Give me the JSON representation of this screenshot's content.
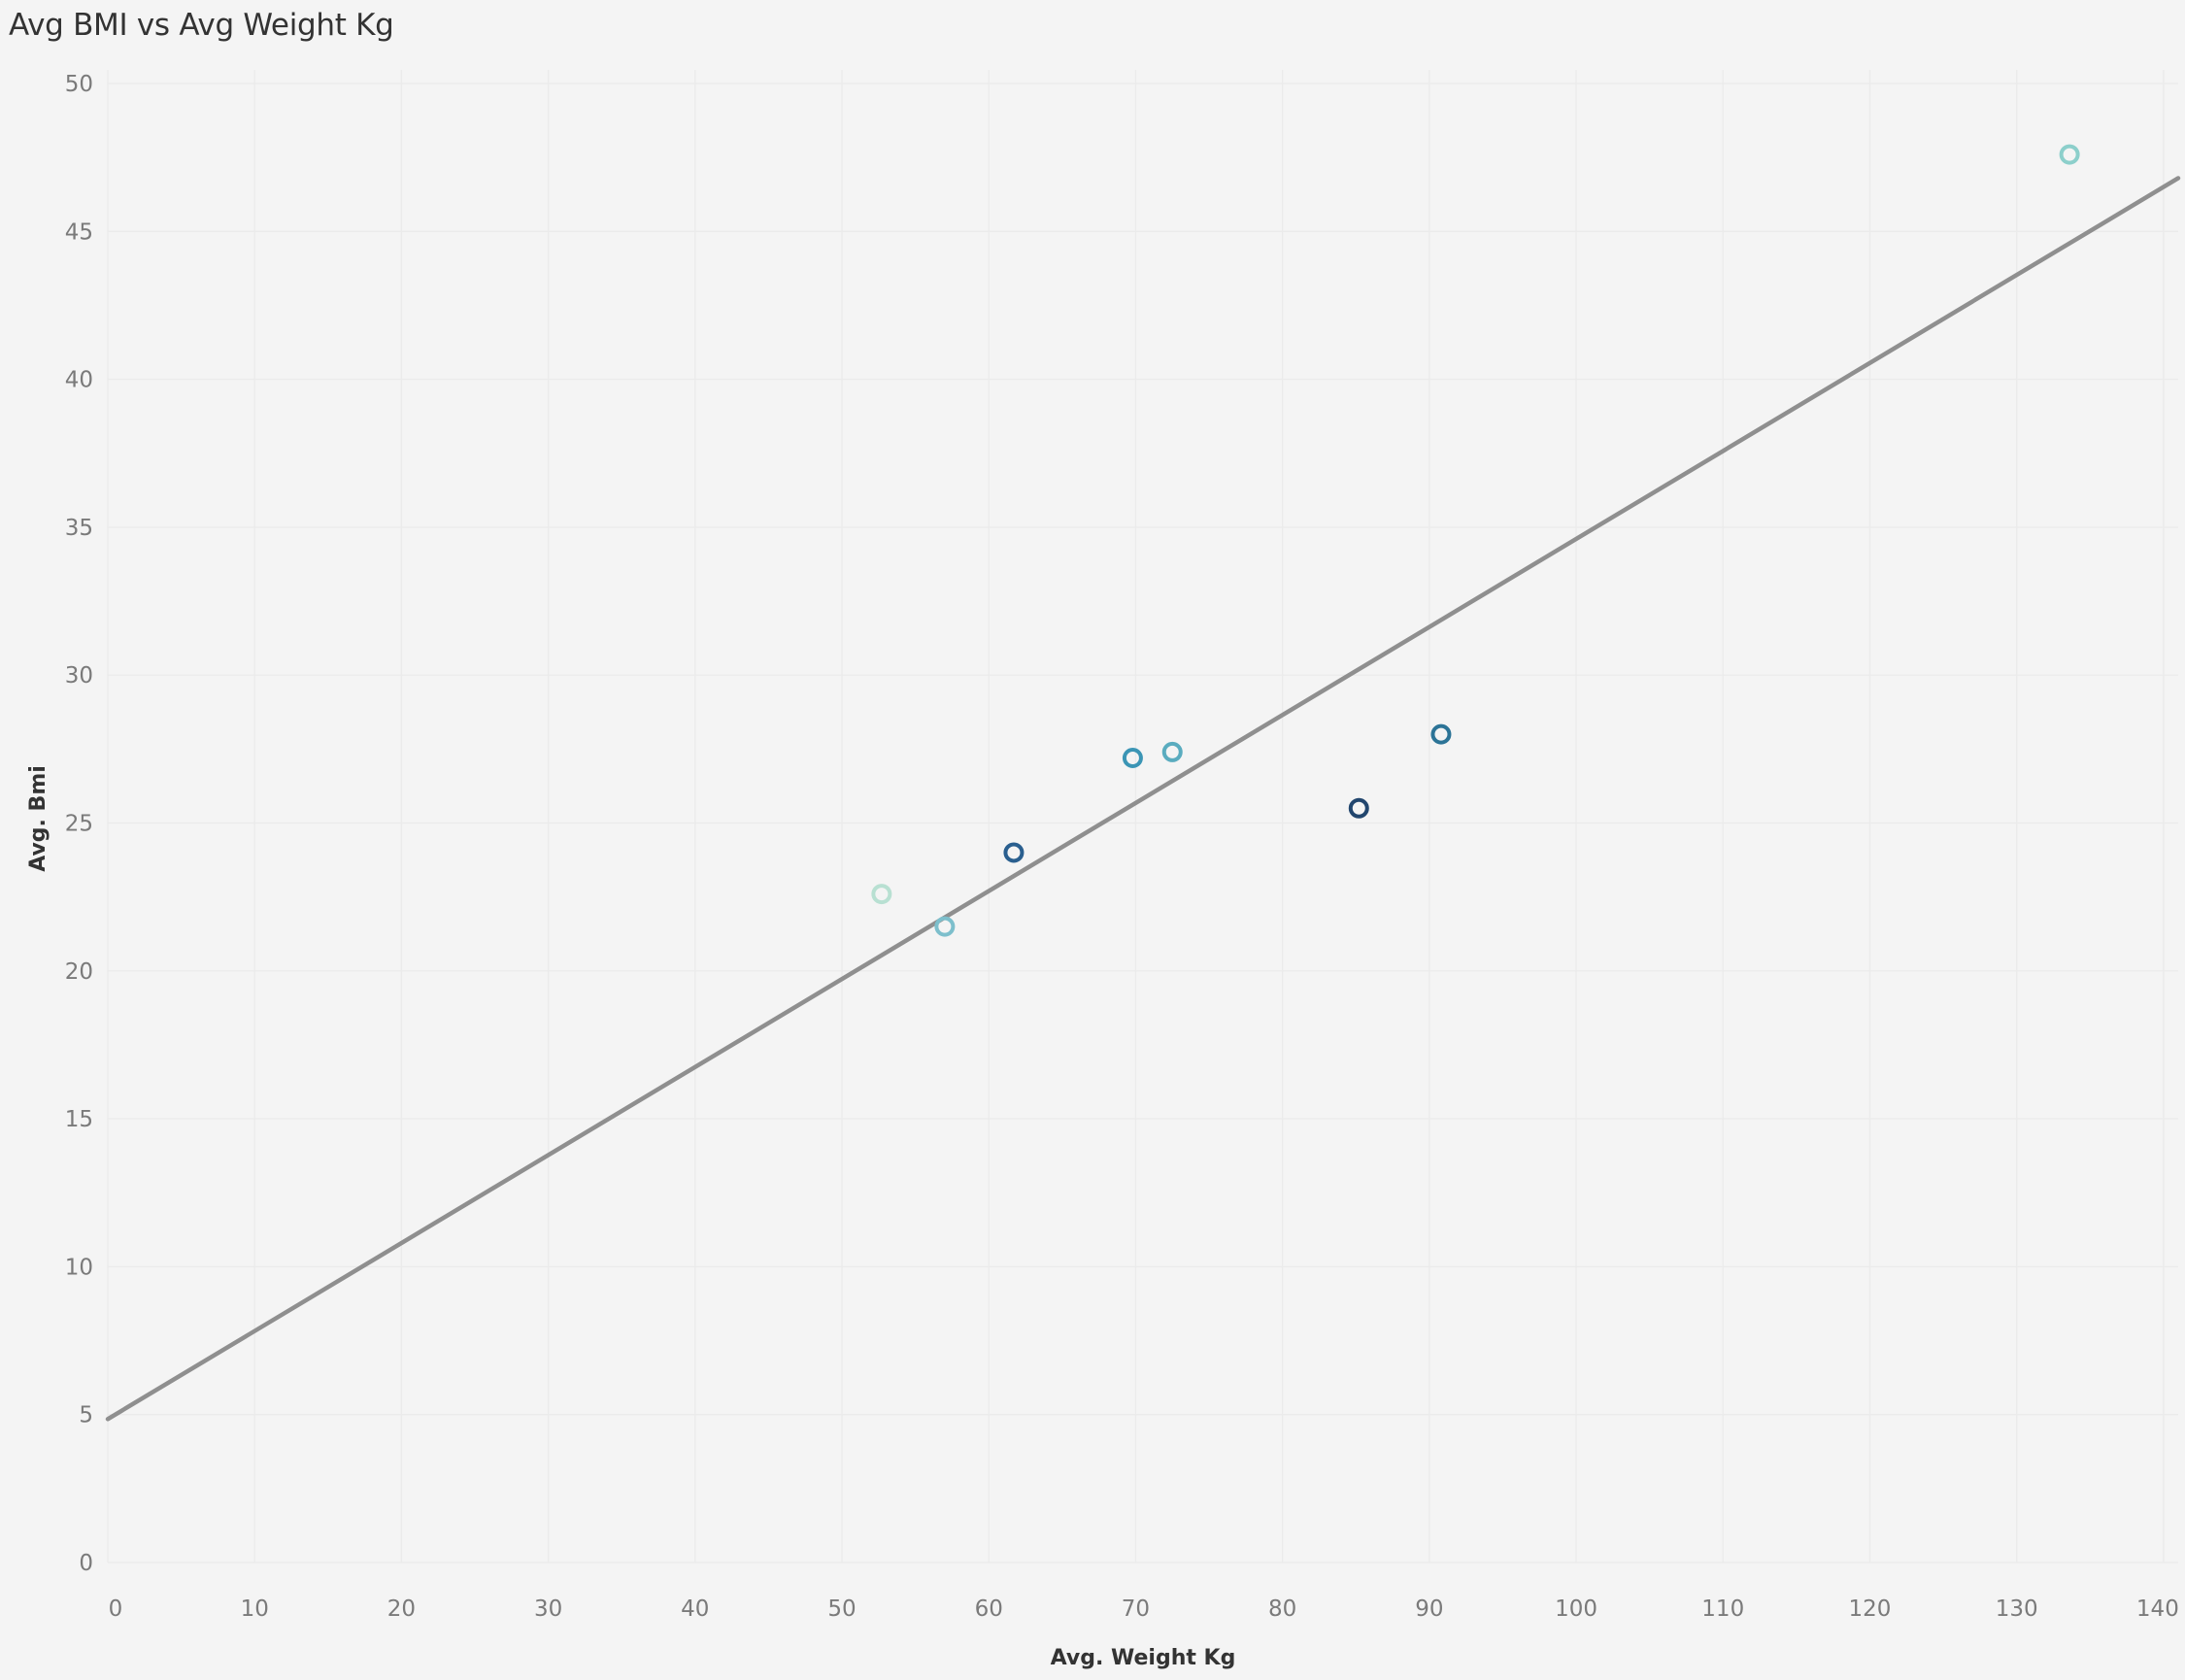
{
  "title": "Avg BMI vs Avg Weight Kg",
  "chart_data": {
    "type": "scatter",
    "title": "Avg BMI vs Avg Weight Kg",
    "xlabel": "Avg. Weight Kg",
    "ylabel": "Avg. Bmi",
    "xlim": [
      0,
      141
    ],
    "ylim": [
      0,
      50
    ],
    "x_ticks": [
      "0",
      "10",
      "20",
      "30",
      "40",
      "50",
      "60",
      "70",
      "80",
      "90",
      "100",
      "110",
      "120",
      "130",
      "140"
    ],
    "y_ticks": [
      "0",
      "5",
      "10",
      "15",
      "20",
      "25",
      "30",
      "35",
      "40",
      "45",
      "50"
    ],
    "grid": true,
    "legend": "none",
    "points": [
      {
        "x": 52.7,
        "y": 22.6,
        "color": "#b8e0d2"
      },
      {
        "x": 57.0,
        "y": 21.5,
        "color": "#7dbfcc"
      },
      {
        "x": 61.7,
        "y": 24.0,
        "color": "#2a5f8f"
      },
      {
        "x": 69.8,
        "y": 27.2,
        "color": "#3b95b5"
      },
      {
        "x": 72.5,
        "y": 27.4,
        "color": "#5aacbf"
      },
      {
        "x": 85.2,
        "y": 25.5,
        "color": "#22466e"
      },
      {
        "x": 90.8,
        "y": 28.0,
        "color": "#2c7497"
      },
      {
        "x": 133.6,
        "y": 47.6,
        "color": "#8ccfcb"
      }
    ],
    "trend_line": {
      "points": [
        [
          0,
          4.85
        ],
        [
          141,
          46.8
        ]
      ],
      "color": "#8f8f8f"
    }
  }
}
